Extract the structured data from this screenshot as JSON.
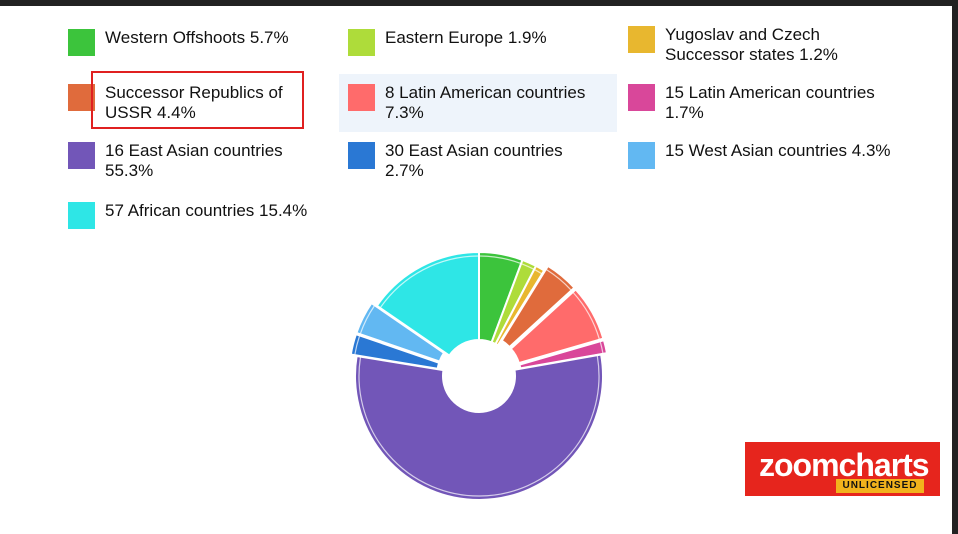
{
  "legend": {
    "items": [
      {
        "label": "Western Offshoots 5.7%",
        "color": "#3cc43c"
      },
      {
        "label": "Eastern Europe 1.9%",
        "color": "#aedc3a"
      },
      {
        "label": "Yugoslav and Czech Successor states 1.2%",
        "color": "#e8b72f"
      },
      {
        "label": "Successor Republics of USSR 4.4%",
        "color": "#e06b3c"
      },
      {
        "label": "8 Latin American countries 7.3%",
        "color": "#ff6b6b"
      },
      {
        "label": "15 Latin American countries 1.7%",
        "color": "#d9479a"
      },
      {
        "label": "16 East Asian countries 55.3%",
        "color": "#7256b8"
      },
      {
        "label": "30 East Asian countries 2.7%",
        "color": "#2a78d4"
      },
      {
        "label": "15 West Asian countries 4.3%",
        "color": "#62b8f2"
      },
      {
        "label": "57 African countries 15.4%",
        "color": "#2ee6e6"
      }
    ]
  },
  "chart_data": {
    "type": "pie",
    "donut": true,
    "legend_position": "top",
    "categories": [
      "Western Offshoots",
      "Eastern Europe",
      "Yugoslav and Czech Successor states",
      "Successor Republics of USSR",
      "8 Latin American countries",
      "15 Latin American countries",
      "16 East Asian countries",
      "30 East Asian countries",
      "15 West Asian countries",
      "57 African countries"
    ],
    "values": [
      5.7,
      1.9,
      1.2,
      4.4,
      7.3,
      1.7,
      55.3,
      2.7,
      4.3,
      15.4
    ],
    "colors": [
      "#3cc43c",
      "#aedc3a",
      "#e8b72f",
      "#e06b3c",
      "#ff6b6b",
      "#d9479a",
      "#7256b8",
      "#2a78d4",
      "#62b8f2",
      "#2ee6e6"
    ],
    "exploded_indices": [
      3,
      4,
      5,
      7,
      8
    ]
  },
  "logo": {
    "text": "zoomcharts",
    "badge": "UNLICENSED"
  }
}
